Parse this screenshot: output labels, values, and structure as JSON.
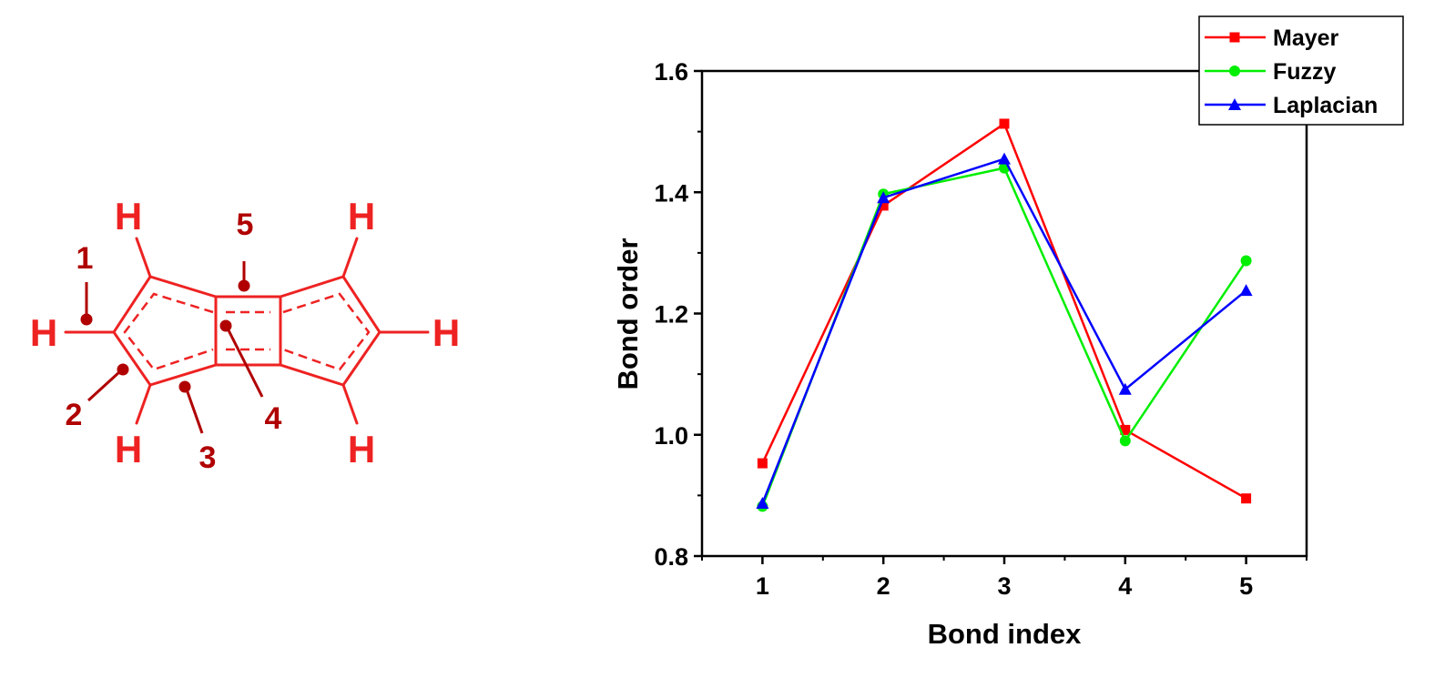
{
  "molecule": {
    "atom_labels": [
      "H",
      "H",
      "H",
      "H",
      "H",
      "H"
    ],
    "bond_labels": [
      "1",
      "2",
      "3",
      "4",
      "5"
    ],
    "color": "#ee2222",
    "label_color": "#b00000"
  },
  "chart_data": {
    "type": "line",
    "title": "",
    "xlabel": "Bond index",
    "ylabel": "Bond order",
    "x": [
      1,
      2,
      3,
      4,
      5
    ],
    "xlim": [
      0.5,
      5.5
    ],
    "ylim": [
      0.8,
      1.6
    ],
    "yticks": [
      "0.8",
      "1.0",
      "1.2",
      "1.4",
      "1.6"
    ],
    "xticks": [
      "1",
      "2",
      "3",
      "4",
      "5"
    ],
    "legend_position": "top-right",
    "grid": false,
    "series": [
      {
        "name": "Mayer",
        "values": [
          0.953,
          1.378,
          1.513,
          1.008,
          0.895
        ],
        "color": "#ff0000",
        "marker": "square"
      },
      {
        "name": "Fuzzy",
        "values": [
          0.882,
          1.397,
          1.44,
          0.99,
          1.287
        ],
        "color": "#00ee00",
        "marker": "circle"
      },
      {
        "name": "Laplacian",
        "values": [
          0.887,
          1.391,
          1.455,
          1.075,
          1.238
        ],
        "color": "#0000ff",
        "marker": "triangle"
      }
    ]
  }
}
